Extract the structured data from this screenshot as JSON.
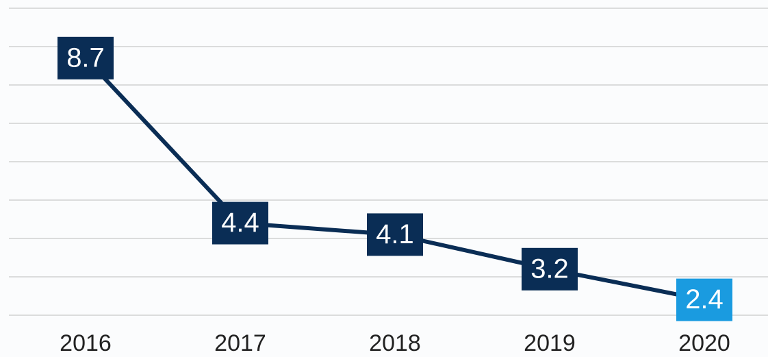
{
  "chart_data": {
    "type": "line",
    "categories": [
      "2016",
      "2017",
      "2018",
      "2019",
      "2020"
    ],
    "series": [
      {
        "color": "#0a2d55",
        "values": [
          8.7,
          4.4,
          4.1,
          3.2,
          2.4
        ]
      }
    ],
    "label_colors": [
      "#0a2d55",
      "#0a2d55",
      "#0a2d55",
      "#0a2d55",
      "#1a9be0"
    ],
    "ylim": [
      2,
      10
    ],
    "yticks": [
      2,
      3,
      4,
      5,
      6,
      7,
      8,
      9,
      10
    ],
    "grid": true
  }
}
